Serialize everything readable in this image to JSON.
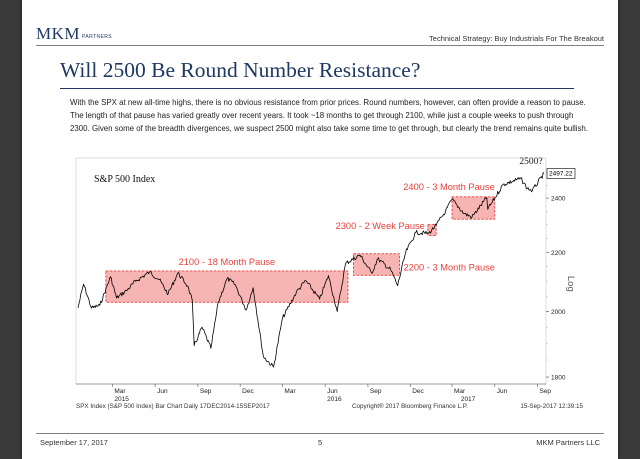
{
  "header": {
    "logo_text": "MKM",
    "logo_subtext": "PARTNERS",
    "section_title": "Technical Strategy: Buy Industrials For The Breakout"
  },
  "main": {
    "title": "Will 2500 Be Round Number Resistance?",
    "body": "With the SPX at new all-time highs, there is no obvious resistance from prior prices. Round numbers, however, can often provide a reason to pause. The length of that pause has varied greatly over recent years. It took ~18 months to get through 2100, while just a couple weeks to push through 2300. Given some of the breadth divergences, we suspect 2500 might also take some time to get through, but clearly the trend remains quite bullish."
  },
  "chart_data": {
    "type": "line",
    "title": "S&P 500 Index",
    "scale": "log",
    "ylabel": "Log",
    "ylim": [
      1780,
      2560
    ],
    "y_ticks": [
      1800,
      2000,
      2200,
      2400
    ],
    "y_tick_labels": [
      "1800",
      "2000",
      "2200",
      "2400"
    ],
    "last_value": 2497.22,
    "last_value_label": "2497.22",
    "x_range": [
      "2014-12-17",
      "2017-09-15"
    ],
    "x_ticks": [
      {
        "date": "2015-03-01",
        "label": "Mar"
      },
      {
        "date": "2015-06-01",
        "label": "Jun"
      },
      {
        "date": "2015-09-01",
        "label": "Sep"
      },
      {
        "date": "2015-12-01",
        "label": "Dec"
      },
      {
        "date": "2016-03-01",
        "label": "Mar"
      },
      {
        "date": "2016-06-01",
        "label": "Jun"
      },
      {
        "date": "2016-09-01",
        "label": "Sep"
      },
      {
        "date": "2016-12-01",
        "label": "Dec"
      },
      {
        "date": "2017-03-01",
        "label": "Mar"
      },
      {
        "date": "2017-06-01",
        "label": "Jun"
      },
      {
        "date": "2017-09-01",
        "label": "Sep"
      }
    ],
    "year_labels": [
      {
        "date": "2015-06-01",
        "label": "2015"
      },
      {
        "date": "2016-06-01",
        "label": "2016"
      },
      {
        "date": "2017-06-01",
        "label": "2017"
      }
    ],
    "series": [
      {
        "x": [
          "2014-12-17",
          "2014-12-29",
          "2015-01-15",
          "2015-02-02",
          "2015-02-25",
          "2015-03-10",
          "2015-03-31",
          "2015-04-20",
          "2015-05-20",
          "2015-06-10",
          "2015-06-29",
          "2015-07-20",
          "2015-08-10",
          "2015-08-20",
          "2015-08-24",
          "2015-09-10",
          "2015-09-29",
          "2015-10-15",
          "2015-11-03",
          "2015-11-20",
          "2015-12-14",
          "2015-12-29",
          "2016-01-20",
          "2016-02-11",
          "2016-03-01",
          "2016-03-31",
          "2016-04-20",
          "2016-05-20",
          "2016-06-08",
          "2016-06-27",
          "2016-07-15",
          "2016-08-15",
          "2016-09-09",
          "2016-09-22",
          "2016-10-20",
          "2016-11-04",
          "2016-11-21",
          "2016-12-13",
          "2017-01-10",
          "2017-01-26",
          "2017-02-15",
          "2017-03-01",
          "2017-03-27",
          "2017-04-13",
          "2017-05-15",
          "2017-05-17",
          "2017-06-19",
          "2017-07-27",
          "2017-08-10",
          "2017-08-21",
          "2017-09-15"
        ],
        "y": [
          2012,
          2090,
          2011,
          2020,
          2115,
          2044,
          2068,
          2100,
          2131,
          2105,
          2057,
          2128,
          2084,
          2035,
          1893,
          1950,
          1885,
          2030,
          2109,
          2089,
          2005,
          2078,
          1860,
          1829,
          1978,
          2063,
          2102,
          2040,
          2119,
          2000,
          2161,
          2190,
          2127,
          2177,
          2139,
          2085,
          2198,
          2271,
          2268,
          2298,
          2349,
          2395,
          2341,
          2328,
          2402,
          2357,
          2453,
          2477,
          2438,
          2429,
          2497
        ]
      }
    ],
    "annotations": [
      {
        "label": "2100 - 18 Month Pause",
        "x_start": "2015-02-15",
        "x_end": "2016-07-20",
        "y_low": 2030,
        "y_high": 2135
      },
      {
        "label": "2200 - 3 Month Pause",
        "x_start": "2016-08-01",
        "x_end": "2016-11-08",
        "y_low": 2120,
        "y_high": 2195
      },
      {
        "label": "2300 - 2 Week Pause",
        "x_start": "2017-01-08",
        "x_end": "2017-01-26",
        "y_low": 2260,
        "y_high": 2300
      },
      {
        "label": "2400 - 3 Month Pause",
        "x_start": "2017-03-01",
        "x_end": "2017-06-01",
        "y_low": 2320,
        "y_high": 2405
      },
      {
        "label": "2500?",
        "x_date": "2017-08-18",
        "y_value": 2535
      }
    ],
    "footer_left": "SPX Index (S&P 500 Index) Bar Chart  Daily 17DEC2014-15SEP2017",
    "footer_center": "Copyright® 2017 Bloomberg Finance L.P.",
    "footer_right": "15-Sep-2017  12:39:15",
    "colors": {
      "price": "#000000",
      "annotation": "#e8403c",
      "zone_fill": "#f4a7a4",
      "zone_border": "#e8403c"
    }
  },
  "footer": {
    "date": "September 17, 2017",
    "page": "5",
    "company": "MKM Partners LLC"
  }
}
